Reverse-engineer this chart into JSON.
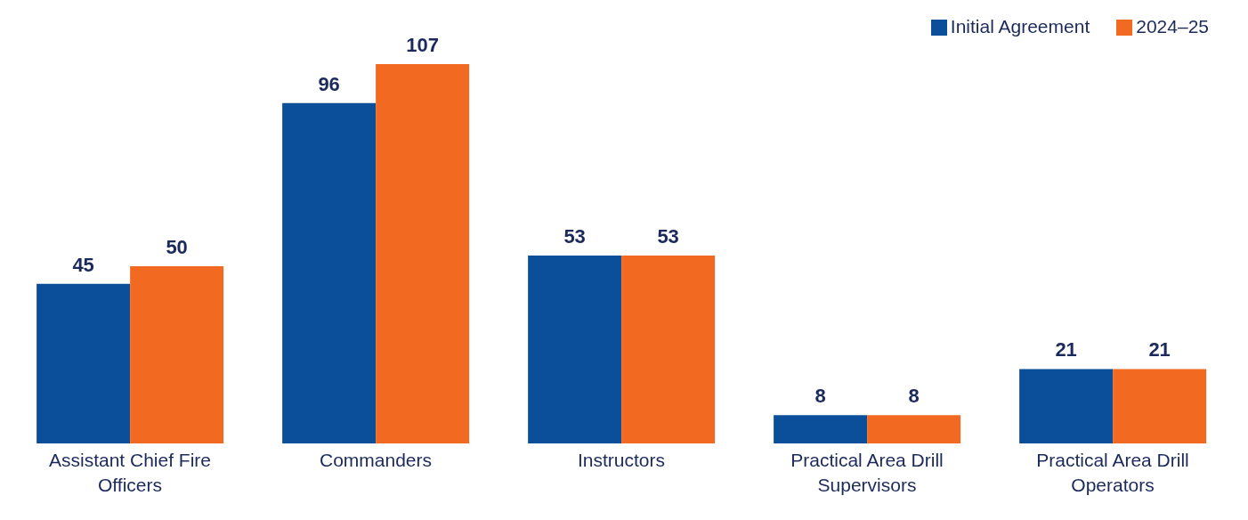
{
  "chart_data": {
    "type": "bar",
    "categories": [
      "Assistant Chief Fire Officers",
      "Commanders",
      "Instructors",
      "Practical Area Drill Supervisors",
      "Practical Area Drill Operators"
    ],
    "series": [
      {
        "name": "Initial Agreement",
        "color": "#0b4f9a",
        "values": [
          45,
          96,
          53,
          8,
          21
        ]
      },
      {
        "name": "2024–25",
        "color": "#f26a22",
        "values": [
          50,
          107,
          53,
          8,
          21
        ]
      }
    ],
    "data_labels": true,
    "legend": "top right"
  }
}
